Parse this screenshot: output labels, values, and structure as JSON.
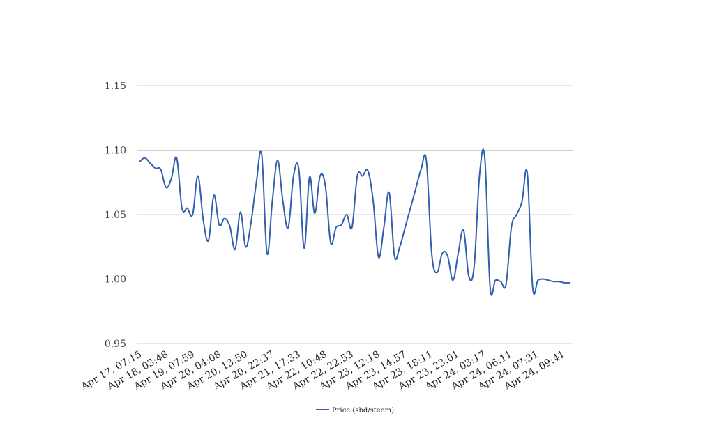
{
  "chart_data": {
    "type": "line",
    "title": "",
    "xlabel": "",
    "ylabel": "",
    "ylim": [
      0.95,
      1.15
    ],
    "yticks": [
      "0.95",
      "1.00",
      "1.05",
      "1.10",
      "1.15"
    ],
    "grid": true,
    "legend_position": "bottom-center",
    "x_tick_labels": [
      "Apr 17, 07:15",
      "Apr 18, 03:48",
      "Apr 19, 07:59",
      "Apr 20, 04:08",
      "Apr 20, 13:50",
      "Apr 20, 22:37",
      "Apr 21, 17:33",
      "Apr 22, 10:48",
      "Apr 22, 22:53",
      "Apr 23, 12:18",
      "Apr 23, 14:57",
      "Apr 23, 18:11",
      "Apr 23, 23:01",
      "Apr 24, 03:17",
      "Apr 24, 06:11",
      "Apr 24, 07:31",
      "Apr 24, 09:41"
    ],
    "series": [
      {
        "name": "Price (sbd/steem)",
        "color": "#2f5fad",
        "values": [
          1.091,
          1.094,
          1.09,
          1.086,
          1.085,
          1.071,
          1.078,
          1.094,
          1.055,
          1.055,
          1.05,
          1.08,
          1.046,
          1.03,
          1.065,
          1.042,
          1.047,
          1.041,
          1.023,
          1.052,
          1.025,
          1.044,
          1.075,
          1.097,
          1.02,
          1.06,
          1.092,
          1.06,
          1.04,
          1.08,
          1.085,
          1.024,
          1.079,
          1.051,
          1.08,
          1.072,
          1.028,
          1.04,
          1.042,
          1.05,
          1.04,
          1.08,
          1.08,
          1.084,
          1.06,
          1.017,
          1.04,
          1.067,
          1.018,
          1.025,
          1.04,
          1.055,
          1.07,
          1.085,
          1.092,
          1.02,
          1.005,
          1.02,
          1.018,
          0.999,
          1.02,
          1.038,
          1.002,
          1.01,
          1.08,
          1.094,
          0.994,
          0.999,
          0.998,
          0.996,
          1.04,
          1.05,
          1.06,
          1.082,
          0.994,
          0.999,
          1.0,
          0.999,
          0.998,
          0.998,
          0.997,
          0.997
        ]
      }
    ]
  }
}
